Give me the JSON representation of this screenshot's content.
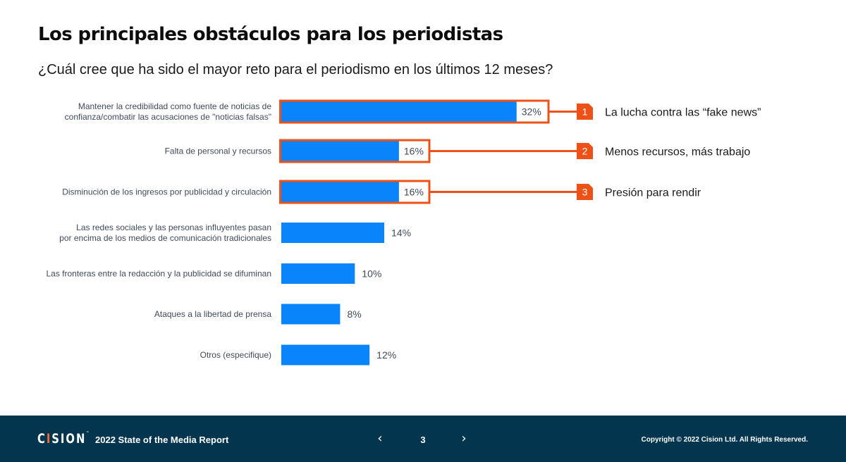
{
  "header": {
    "title": "Los principales obstáculos para los periodistas",
    "subtitle": "¿Cuál cree que ha sido el mayor reto para el periodismo en los últimos 12 meses?"
  },
  "colors": {
    "bar": "#0a84fb",
    "highlight": "#ed5117",
    "footer_bg": "#03354f",
    "logo_accent": "#ef6a35"
  },
  "chart_data": {
    "type": "bar",
    "orientation": "horizontal",
    "title": "Los principales obstáculos para los periodistas",
    "subtitle": "¿Cuál cree que ha sido el mayor reto para el periodismo en los últimos 12 meses?",
    "xlabel": "",
    "ylabel": "",
    "unit": "%",
    "grid": false,
    "categories": [
      [
        "Mantener la credibilidad como fuente de noticias de",
        "confianza/combatir las acusaciones de \"noticias falsas\""
      ],
      [
        "Falta de personal y recursos"
      ],
      [
        "Disminución de los ingresos por publicidad y circulación"
      ],
      [
        "Las redes sociales y las personas influyentes pasan",
        "por encima de los medios de comunicación tradicionales"
      ],
      [
        "Las fronteras entre la redacción y la publicidad se difuminan"
      ],
      [
        "Ataques a la libertad de prensa"
      ],
      [
        "Otros (especifique)"
      ]
    ],
    "values": [
      32,
      16,
      16,
      14,
      10,
      8,
      12
    ],
    "value_labels": [
      "32%",
      "16%",
      "16%",
      "14%",
      "10%",
      "8%",
      "12%"
    ],
    "highlighted": [
      0,
      1,
      2
    ],
    "callouts": [
      {
        "badge": "1",
        "text": "La lucha contra las “fake news”",
        "row": 0
      },
      {
        "badge": "2",
        "text": "Menos recursos, más trabajo",
        "row": 1
      },
      {
        "badge": "3",
        "text": "Presión para rendir",
        "row": 2
      }
    ]
  },
  "footer": {
    "logo": {
      "pre": "C",
      "accent": "I",
      "post": "SION",
      "tm": "™"
    },
    "report_title": "2022 State of the Media Report",
    "prev_icon": "chevron-left-icon",
    "prev_glyph": "‹",
    "page_number": "3",
    "next_icon": "chevron-right-icon",
    "next_glyph": "›",
    "copyright": "Copyright © 2022 Cision Ltd. All Rights Reserved."
  }
}
